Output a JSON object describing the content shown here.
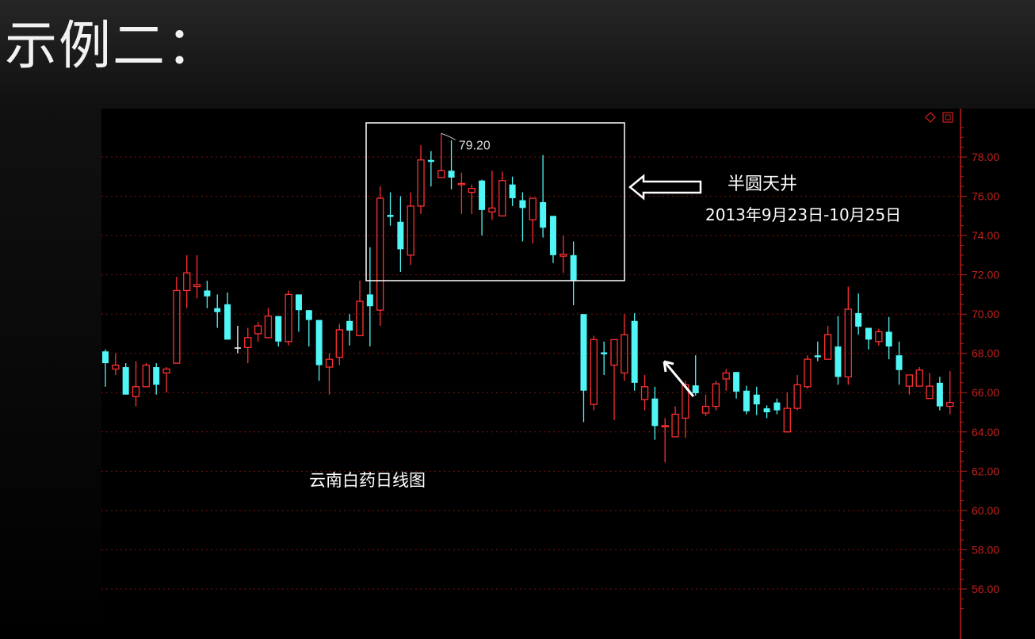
{
  "slide": {
    "title": "示例二："
  },
  "toolbar_icons": [
    "diamond-icon",
    "window-icon"
  ],
  "annotations": {
    "pattern_name": "半圆天井",
    "date_range": "2013年9月23日-10月25日",
    "chart_name": "云南白药日线图",
    "high_label": "79.20"
  },
  "colors": {
    "up": "#ff3030",
    "down": "#50f5f5",
    "doji": "#ffffff",
    "axis": "#c0201c",
    "grid": "#7a1512",
    "annotation": "#ffffff"
  },
  "chart_data": {
    "type": "candlestick",
    "ylim": [
      55,
      79.6
    ],
    "y_ticks": [
      "78.00",
      "76.00",
      "74.00",
      "72.00",
      "70.00",
      "68.00",
      "66.00",
      "64.00",
      "62.00",
      "60.00",
      "58.00",
      "56.00"
    ],
    "grid": true,
    "candles_ohlc": [
      [
        68.1,
        68.2,
        66.3,
        67.5
      ],
      [
        67.2,
        68.0,
        66.9,
        67.4
      ],
      [
        67.3,
        67.5,
        65.9,
        65.9
      ],
      [
        65.8,
        67.6,
        65.3,
        66.3
      ],
      [
        66.3,
        67.5,
        66.3,
        67.4
      ],
      [
        67.3,
        67.5,
        65.9,
        66.4
      ],
      [
        67.0,
        67.3,
        66.0,
        67.2
      ],
      [
        67.5,
        71.9,
        67.5,
        71.2
      ],
      [
        71.2,
        73.0,
        70.3,
        72.1
      ],
      [
        71.4,
        73.0,
        70.8,
        71.5
      ],
      [
        71.2,
        71.7,
        70.3,
        70.9
      ],
      [
        70.3,
        71.0,
        69.3,
        70.1
      ],
      [
        70.5,
        71.1,
        68.7,
        68.7
      ],
      [
        68.3,
        69.4,
        68.0,
        68.3
      ],
      [
        68.3,
        69.3,
        67.5,
        68.8
      ],
      [
        69.0,
        69.6,
        68.6,
        69.4
      ],
      [
        68.8,
        70.3,
        68.8,
        69.9
      ],
      [
        69.9,
        69.9,
        68.35,
        68.6
      ],
      [
        68.6,
        71.2,
        68.4,
        71.0
      ],
      [
        71.0,
        71.0,
        69.1,
        70.2
      ],
      [
        70.2,
        70.2,
        68.35,
        69.7
      ],
      [
        69.7,
        69.7,
        66.6,
        67.4
      ],
      [
        67.3,
        68.0,
        65.9,
        67.7
      ],
      [
        67.8,
        69.5,
        67.4,
        69.2
      ],
      [
        69.65,
        70.0,
        68.4,
        69.16
      ],
      [
        68.9,
        71.7,
        68.9,
        70.65
      ],
      [
        71.0,
        73.4,
        68.35,
        70.4
      ],
      [
        70.2,
        76.5,
        69.4,
        75.9
      ],
      [
        75.05,
        76.2,
        74.5,
        74.95
      ],
      [
        74.7,
        76.0,
        72.15,
        73.3
      ],
      [
        73.0,
        76.2,
        72.5,
        75.5
      ],
      [
        75.5,
        78.6,
        75.1,
        77.85
      ],
      [
        77.85,
        78.3,
        76.5,
        77.75
      ],
      [
        76.95,
        79.2,
        76.95,
        77.3
      ],
      [
        77.3,
        78.85,
        76.35,
        76.95
      ],
      [
        76.6,
        77.2,
        75.1,
        76.65
      ],
      [
        76.2,
        76.6,
        75.1,
        76.4
      ],
      [
        76.8,
        76.85,
        74.0,
        75.3
      ],
      [
        75.2,
        77.3,
        74.8,
        75.4
      ],
      [
        75.0,
        77.25,
        75.0,
        76.8
      ],
      [
        76.6,
        77.0,
        75.5,
        75.9
      ],
      [
        75.8,
        76.2,
        73.7,
        75.4
      ],
      [
        74.8,
        75.9,
        73.6,
        75.9
      ],
      [
        75.7,
        78.1,
        73.9,
        74.4
      ],
      [
        75.0,
        75.0,
        72.6,
        73.0
      ],
      [
        72.95,
        74.0,
        72.1,
        73.05
      ],
      [
        73.0,
        73.7,
        70.45,
        71.7
      ],
      [
        70.0,
        70.0,
        64.5,
        66.1
      ],
      [
        65.4,
        68.9,
        65.1,
        68.7
      ],
      [
        68.05,
        68.6,
        66.9,
        67.95
      ],
      [
        67.4,
        68.7,
        64.6,
        68.7
      ],
      [
        67.0,
        70.0,
        66.6,
        68.95
      ],
      [
        69.65,
        70.05,
        66.1,
        66.5
      ],
      [
        65.65,
        66.9,
        65.1,
        66.3
      ],
      [
        65.7,
        66.3,
        63.6,
        64.3
      ],
      [
        64.28,
        64.7,
        62.45,
        64.32
      ],
      [
        63.75,
        65.3,
        63.75,
        64.9
      ],
      [
        64.7,
        66.6,
        63.7,
        66.4
      ],
      [
        66.37,
        67.9,
        65.85,
        65.97
      ],
      [
        64.96,
        65.9,
        64.8,
        65.3
      ],
      [
        65.3,
        66.6,
        65.1,
        66.45
      ],
      [
        66.7,
        67.2,
        66.1,
        67.0
      ],
      [
        67.05,
        67.05,
        65.7,
        66.05
      ],
      [
        66.1,
        66.35,
        64.9,
        65.05
      ],
      [
        65.9,
        66.3,
        64.85,
        65.4
      ],
      [
        65.2,
        65.35,
        64.7,
        65.0
      ],
      [
        65.5,
        65.7,
        64.9,
        65.1
      ],
      [
        64.0,
        66.0,
        64.0,
        65.2
      ],
      [
        65.2,
        66.9,
        65.1,
        66.4
      ],
      [
        66.3,
        67.9,
        66.2,
        67.7
      ],
      [
        67.9,
        68.6,
        67.6,
        67.8
      ],
      [
        67.7,
        69.4,
        67.7,
        68.95
      ],
      [
        68.35,
        69.9,
        66.4,
        66.8
      ],
      [
        66.8,
        71.4,
        66.4,
        70.25
      ],
      [
        70.05,
        71.05,
        68.95,
        69.36
      ],
      [
        69.3,
        69.3,
        68.2,
        68.7
      ],
      [
        68.6,
        69.25,
        68.4,
        69.1
      ],
      [
        69.1,
        69.85,
        67.7,
        68.35
      ],
      [
        67.9,
        68.6,
        66.4,
        67.15
      ],
      [
        66.33,
        66.9,
        65.9,
        66.9
      ],
      [
        66.33,
        67.3,
        66.33,
        67.15
      ],
      [
        65.7,
        67.0,
        65.7,
        66.33
      ],
      [
        66.5,
        66.8,
        65.1,
        65.3
      ],
      [
        65.3,
        67.1,
        64.9,
        65.5
      ]
    ],
    "highlight_range_candles": [
      27,
      47
    ]
  }
}
